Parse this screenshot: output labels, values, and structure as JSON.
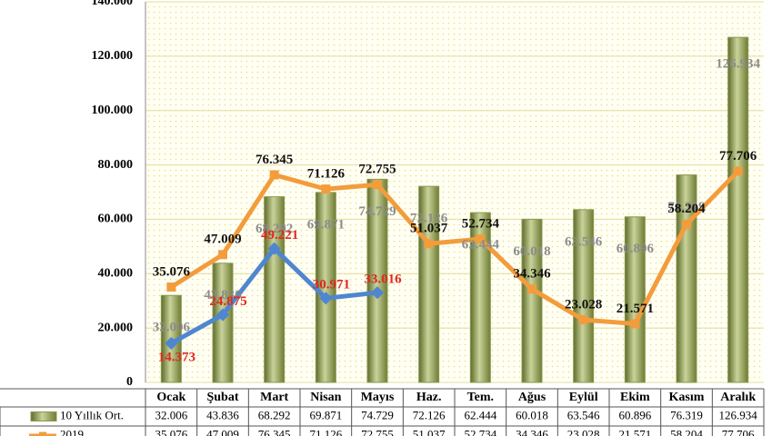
{
  "chart_data": {
    "type": "bar",
    "categories": [
      "Ocak",
      "Şubat",
      "Mart",
      "Nisan",
      "Mayıs",
      "Haz.",
      "Tem.",
      "Ağus",
      "Eylül",
      "Ekim",
      "Kasım",
      "Aralık"
    ],
    "ylim": [
      0,
      140000
    ],
    "yticks": [
      {
        "value": 0,
        "label": "0"
      },
      {
        "value": 20000,
        "label": "20.000"
      },
      {
        "value": 40000,
        "label": "40.000"
      },
      {
        "value": 60000,
        "label": "60.000"
      },
      {
        "value": 80000,
        "label": "80.000"
      },
      {
        "value": 100000,
        "label": "100.000"
      },
      {
        "value": 120000,
        "label": "120.000"
      },
      {
        "value": 140000,
        "label": "140.000"
      }
    ],
    "grid": true,
    "series": [
      {
        "name": "10 Yıllık Ort.",
        "type": "bar",
        "color": "#8a9a4a",
        "label_color": "#8c8c8c",
        "values": [
          32006,
          43836,
          68292,
          69871,
          74729,
          72126,
          62444,
          60018,
          63546,
          60896,
          76319,
          126934
        ],
        "value_labels": [
          "32.006",
          "43.836",
          "68.292",
          "69.871",
          "74.729",
          "72.126",
          "62.444",
          "60.018",
          "63.546",
          "60.896",
          "76.319",
          "126.934"
        ]
      },
      {
        "name": "2019",
        "type": "line",
        "color": "#f39c3c",
        "label_color": "#111111",
        "values": [
          35076,
          47009,
          76345,
          71126,
          72755,
          51037,
          52734,
          34346,
          23028,
          21571,
          58204,
          77706
        ],
        "value_labels": [
          "35.076",
          "47.009",
          "76.345",
          "71.126",
          "72.755",
          "51.037",
          "52.734",
          "34.346",
          "23.028",
          "21.571",
          "58.204",
          "77.706"
        ]
      },
      {
        "type": "line",
        "color": "#4f86d0",
        "label_color": "#e0281e",
        "values": [
          14373,
          24875,
          49221,
          30971,
          33016,
          null,
          null,
          null,
          null,
          null,
          null,
          null
        ],
        "value_labels": [
          "14.373",
          "24.875",
          "49.221",
          "30.971",
          "33.016",
          null,
          null,
          null,
          null,
          null,
          null,
          null
        ]
      }
    ]
  }
}
